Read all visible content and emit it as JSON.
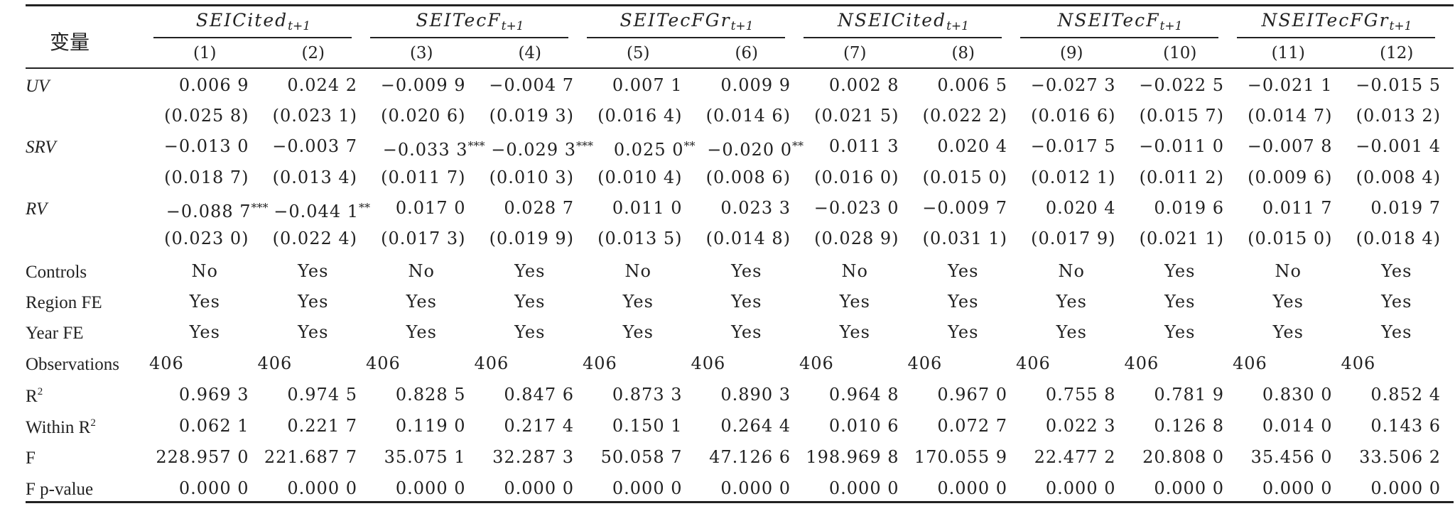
{
  "table": {
    "var_header": "变量",
    "groups": [
      {
        "base": "SEICited",
        "sub": "t+1"
      },
      {
        "base": "SEITecF",
        "sub": "t+1"
      },
      {
        "base": "SEITecFGr",
        "sub": "t+1"
      },
      {
        "base": "NSEICited",
        "sub": "t+1"
      },
      {
        "base": "NSEITecF",
        "sub": "t+1"
      },
      {
        "base": "NSEITecFGr",
        "sub": "t+1"
      }
    ],
    "col_numbers": [
      "(1)",
      "(2)",
      "(3)",
      "(4)",
      "(5)",
      "(6)",
      "(7)",
      "(8)",
      "(9)",
      "(10)",
      "(11)",
      "(12)"
    ],
    "rows": [
      {
        "label": "UV",
        "italic": true,
        "values": [
          "0.006 9",
          "0.024 2",
          "−0.009 9",
          "−0.004 7",
          "0.007 1",
          "0.009 9",
          "0.002 8",
          "0.006 5",
          "−0.027 3",
          "−0.022 5",
          "−0.021 1",
          "−0.015 5"
        ],
        "stars": [
          "",
          "",
          "",
          "",
          "",
          "",
          "",
          "",
          "",
          "",
          "",
          ""
        ]
      },
      {
        "label": "",
        "italic": false,
        "values": [
          "(0.025 8)",
          "(0.023 1)",
          "(0.020 6)",
          "(0.019 3)",
          "(0.016 4)",
          "(0.014 6)",
          "(0.021 5)",
          "(0.022 2)",
          "(0.016 6)",
          "(0.015 7)",
          "(0.014 7)",
          "(0.013 2)"
        ],
        "stars": [
          "",
          "",
          "",
          "",
          "",
          "",
          "",
          "",
          "",
          "",
          "",
          ""
        ]
      },
      {
        "label": "SRV",
        "italic": true,
        "values": [
          "−0.013 0",
          "−0.003 7",
          "−0.033 3",
          "−0.029 3",
          "0.025 0",
          "−0.020 0",
          "0.011 3",
          "0.020 4",
          "−0.017 5",
          "−0.011 0",
          "−0.007 8",
          "−0.001 4"
        ],
        "stars": [
          "",
          "",
          "***",
          "***",
          "**",
          "**",
          "",
          "",
          "",
          "",
          "",
          ""
        ]
      },
      {
        "label": "",
        "italic": false,
        "values": [
          "(0.018 7)",
          "(0.013 4)",
          "(0.011 7)",
          "(0.010 3)",
          "(0.010 4)",
          "(0.008 6)",
          "(0.016 0)",
          "(0.015 0)",
          "(0.012 1)",
          "(0.011 2)",
          "(0.009 6)",
          "(0.008 4)"
        ],
        "stars": [
          "",
          "",
          "",
          "",
          "",
          "",
          "",
          "",
          "",
          "",
          "",
          ""
        ]
      },
      {
        "label": "RV",
        "italic": true,
        "values": [
          "−0.088 7",
          "−0.044 1",
          "0.017 0",
          "0.028 7",
          "0.011 0",
          "0.023 3",
          "−0.023 0",
          "−0.009 7",
          "0.020 4",
          "0.019 6",
          "0.011 7",
          "0.019 7"
        ],
        "stars": [
          "***",
          "**",
          "",
          "",
          "",
          "",
          "",
          "",
          "",
          "",
          "",
          ""
        ]
      },
      {
        "label": "",
        "italic": false,
        "values": [
          "(0.023 0)",
          "(0.022 4)",
          "(0.017 3)",
          "(0.019 9)",
          "(0.013 5)",
          "(0.014 8)",
          "(0.028 9)",
          "(0.031 1)",
          "(0.017 9)",
          "(0.021 1)",
          "(0.015 0)",
          "(0.018 4)"
        ],
        "stars": [
          "",
          "",
          "",
          "",
          "",
          "",
          "",
          "",
          "",
          "",
          "",
          ""
        ]
      },
      {
        "label": "Controls",
        "italic": false,
        "center": true,
        "values": [
          "No",
          "Yes",
          "No",
          "Yes",
          "No",
          "Yes",
          "No",
          "Yes",
          "No",
          "Yes",
          "No",
          "Yes"
        ],
        "stars": [
          "",
          "",
          "",
          "",
          "",
          "",
          "",
          "",
          "",
          "",
          "",
          ""
        ]
      },
      {
        "label": "Region FE",
        "italic": false,
        "center": true,
        "values": [
          "Yes",
          "Yes",
          "Yes",
          "Yes",
          "Yes",
          "Yes",
          "Yes",
          "Yes",
          "Yes",
          "Yes",
          "Yes",
          "Yes"
        ],
        "stars": [
          "",
          "",
          "",
          "",
          "",
          "",
          "",
          "",
          "",
          "",
          "",
          ""
        ]
      },
      {
        "label": "Year FE",
        "italic": false,
        "center": true,
        "values": [
          "Yes",
          "Yes",
          "Yes",
          "Yes",
          "Yes",
          "Yes",
          "Yes",
          "Yes",
          "Yes",
          "Yes",
          "Yes",
          "Yes"
        ],
        "stars": [
          "",
          "",
          "",
          "",
          "",
          "",
          "",
          "",
          "",
          "",
          "",
          ""
        ]
      },
      {
        "label": "Observations",
        "italic": false,
        "left": true,
        "values": [
          "406",
          "406",
          "406",
          "406",
          "406",
          "406",
          "406",
          "406",
          "406",
          "406",
          "406",
          "406"
        ],
        "stars": [
          "",
          "",
          "",
          "",
          "",
          "",
          "",
          "",
          "",
          "",
          "",
          ""
        ]
      },
      {
        "label": "R",
        "label_sup": "2",
        "italic": false,
        "values": [
          "0.969 3",
          "0.974 5",
          "0.828 5",
          "0.847 6",
          "0.873 3",
          "0.890 3",
          "0.964 8",
          "0.967 0",
          "0.755 8",
          "0.781 9",
          "0.830 0",
          "0.852 4"
        ],
        "stars": [
          "",
          "",
          "",
          "",
          "",
          "",
          "",
          "",
          "",
          "",
          "",
          ""
        ]
      },
      {
        "label": "Within R",
        "label_sup": "2",
        "italic": false,
        "values": [
          "0.062 1",
          "0.221 7",
          "0.119 0",
          "0.217 4",
          "0.150 1",
          "0.264 4",
          "0.010 6",
          "0.072 7",
          "0.022 3",
          "0.126 8",
          "0.014 0",
          "0.143 6"
        ],
        "stars": [
          "",
          "",
          "",
          "",
          "",
          "",
          "",
          "",
          "",
          "",
          "",
          ""
        ]
      },
      {
        "label": "F",
        "italic": false,
        "values": [
          "228.957 0",
          "221.687 7",
          "35.075 1",
          "32.287 3",
          "50.058 7",
          "47.126 6",
          "198.969 8",
          "170.055 9",
          "22.477 2",
          "20.808 0",
          "35.456 0",
          "33.506 2"
        ],
        "stars": [
          "",
          "",
          "",
          "",
          "",
          "",
          "",
          "",
          "",
          "",
          "",
          ""
        ]
      },
      {
        "label": "F p-value",
        "italic": false,
        "values": [
          "0.000 0",
          "0.000 0",
          "0.000 0",
          "0.000 0",
          "0.000 0",
          "0.000 0",
          "0.000 0",
          "0.000 0",
          "0.000 0",
          "0.000 0",
          "0.000 0",
          "0.000 0"
        ],
        "stars": [
          "",
          "",
          "",
          "",
          "",
          "",
          "",
          "",
          "",
          "",
          "",
          ""
        ]
      }
    ]
  }
}
